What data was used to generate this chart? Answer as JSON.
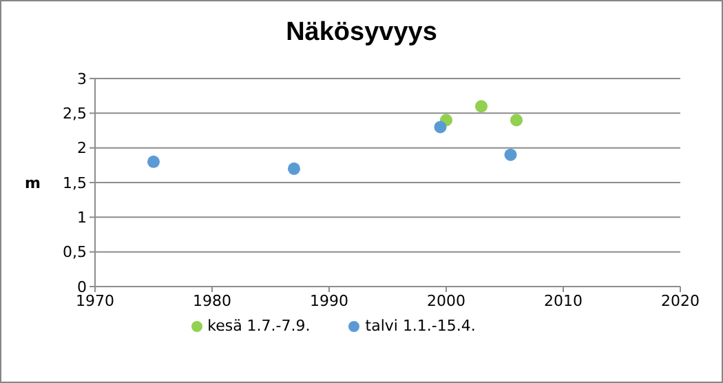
{
  "chart_data": {
    "type": "scatter",
    "title": "Näkösyvyys",
    "ylabel": "m",
    "xlim": [
      1970,
      2020
    ],
    "xticks": [
      1970,
      1980,
      1990,
      2000,
      2010,
      2020
    ],
    "ylim": [
      0,
      3
    ],
    "yticks": [
      0,
      {
        "value": 0.5,
        "label": "0,5"
      },
      1,
      {
        "value": 1.5,
        "label": "1,5"
      },
      2,
      {
        "value": 2.5,
        "label": "2,5"
      },
      3
    ],
    "series": [
      {
        "name": "kesä 1.7.-7.9.",
        "color": "#92d050",
        "x": [
          2000,
          2003,
          2006
        ],
        "values": [
          2.4,
          2.6,
          2.4
        ]
      },
      {
        "name": "talvi 1.1.-15.4.",
        "color": "#5b9bd5",
        "x": [
          1975,
          1987,
          1999.5,
          2005.5
        ],
        "values": [
          1.8,
          1.7,
          2.3,
          1.9
        ]
      }
    ],
    "grid": "y",
    "legend": "bottom",
    "marker": "circle"
  }
}
